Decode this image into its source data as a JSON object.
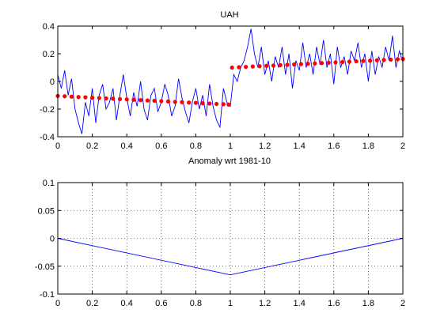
{
  "chart_data": [
    {
      "type": "line",
      "title": "UAH",
      "xlabel": "Anomaly wrt 1981-10",
      "ylabel": "",
      "xlim": [
        0,
        2
      ],
      "ylim": [
        -0.4,
        0.4
      ],
      "grid": false,
      "xticks": [
        "0",
        "0.2",
        "0.4",
        "0.6",
        "0.8",
        "1",
        "1.2",
        "1.4",
        "1.6",
        "1.8",
        "2"
      ],
      "yticks": [
        "-0.4",
        "-0.2",
        "0",
        "0.2",
        "0.4"
      ],
      "series": [
        {
          "color": "#0000ff",
          "style": "line",
          "x": [
            0.0,
            0.02,
            0.04,
            0.06,
            0.08,
            0.1,
            0.12,
            0.14,
            0.16,
            0.18,
            0.2,
            0.22,
            0.24,
            0.26,
            0.28,
            0.3,
            0.32,
            0.34,
            0.36,
            0.38,
            0.4,
            0.42,
            0.44,
            0.46,
            0.48,
            0.5,
            0.52,
            0.54,
            0.56,
            0.58,
            0.6,
            0.62,
            0.64,
            0.66,
            0.68,
            0.7,
            0.72,
            0.74,
            0.76,
            0.78,
            0.8,
            0.82,
            0.84,
            0.86,
            0.88,
            0.9,
            0.92,
            0.94,
            0.96,
            0.98,
            1.0,
            1.02,
            1.04,
            1.06,
            1.08,
            1.1,
            1.12,
            1.14,
            1.16,
            1.18,
            1.2,
            1.22,
            1.24,
            1.26,
            1.28,
            1.3,
            1.32,
            1.34,
            1.36,
            1.38,
            1.4,
            1.42,
            1.44,
            1.46,
            1.48,
            1.5,
            1.52,
            1.54,
            1.56,
            1.58,
            1.6,
            1.62,
            1.64,
            1.66,
            1.68,
            1.7,
            1.72,
            1.74,
            1.76,
            1.78,
            1.8,
            1.82,
            1.84,
            1.86,
            1.88,
            1.9,
            1.92,
            1.94,
            1.96,
            1.98,
            2.0
          ],
          "y": [
            0.05,
            -0.05,
            0.08,
            -0.1,
            0.02,
            -0.2,
            -0.3,
            -0.38,
            -0.15,
            -0.25,
            -0.05,
            -0.3,
            -0.1,
            -0.02,
            -0.2,
            -0.15,
            -0.05,
            -0.28,
            -0.1,
            0.05,
            -0.12,
            -0.25,
            -0.08,
            -0.18,
            0.0,
            -0.2,
            -0.28,
            -0.1,
            -0.05,
            -0.22,
            -0.15,
            -0.02,
            -0.1,
            -0.25,
            -0.18,
            0.02,
            -0.12,
            -0.22,
            -0.3,
            -0.15,
            -0.05,
            -0.2,
            -0.1,
            -0.25,
            -0.02,
            -0.18,
            -0.28,
            -0.33,
            -0.05,
            -0.15,
            -0.18,
            0.05,
            0.0,
            0.1,
            0.15,
            0.25,
            0.38,
            0.2,
            0.1,
            0.25,
            0.05,
            0.15,
            0.0,
            0.18,
            0.1,
            0.25,
            0.05,
            0.2,
            -0.05,
            0.15,
            0.08,
            0.28,
            0.1,
            0.2,
            0.05,
            0.25,
            0.12,
            0.3,
            0.1,
            0.2,
            -0.02,
            0.25,
            0.1,
            0.18,
            0.05,
            0.22,
            0.15,
            0.28,
            0.1,
            0.2,
            0.0,
            0.22,
            0.05,
            0.18,
            0.1,
            0.25,
            0.15,
            0.33,
            0.1,
            0.22,
            0.14
          ]
        },
        {
          "color": "#ff0000",
          "style": "markers",
          "x": [
            0.0,
            0.04,
            0.08,
            0.12,
            0.16,
            0.2,
            0.24,
            0.28,
            0.32,
            0.36,
            0.4,
            0.44,
            0.48,
            0.52,
            0.56,
            0.6,
            0.64,
            0.68,
            0.72,
            0.76,
            0.8,
            0.84,
            0.88,
            0.92,
            0.96,
            0.99,
            1.01,
            1.05,
            1.09,
            1.13,
            1.17,
            1.21,
            1.25,
            1.29,
            1.33,
            1.37,
            1.41,
            1.45,
            1.49,
            1.53,
            1.57,
            1.61,
            1.65,
            1.69,
            1.73,
            1.77,
            1.81,
            1.85,
            1.89,
            1.93,
            1.97,
            2.0
          ],
          "y": [
            -0.105,
            -0.107,
            -0.11,
            -0.113,
            -0.115,
            -0.118,
            -0.12,
            -0.123,
            -0.125,
            -0.128,
            -0.13,
            -0.133,
            -0.135,
            -0.138,
            -0.14,
            -0.143,
            -0.145,
            -0.148,
            -0.15,
            -0.153,
            -0.155,
            -0.158,
            -0.16,
            -0.163,
            -0.165,
            -0.167,
            0.1,
            0.103,
            0.105,
            0.108,
            0.11,
            0.113,
            0.115,
            0.118,
            0.12,
            0.123,
            0.125,
            0.128,
            0.13,
            0.133,
            0.135,
            0.138,
            0.14,
            0.143,
            0.145,
            0.148,
            0.15,
            0.153,
            0.155,
            0.158,
            0.16,
            0.162
          ]
        }
      ]
    },
    {
      "type": "line",
      "title": "",
      "xlabel": "",
      "ylabel": "",
      "xlim": [
        0,
        2
      ],
      "ylim": [
        -0.1,
        0.1
      ],
      "grid": true,
      "xticks": [
        "0",
        "0.2",
        "0.4",
        "0.6",
        "0.8",
        "1",
        "1.2",
        "1.4",
        "1.6",
        "1.8",
        "2"
      ],
      "yticks": [
        "-0.1",
        "-0.05",
        "0",
        "0.05",
        "0.1"
      ],
      "series": [
        {
          "color": "#0000ff",
          "style": "line",
          "x": [
            0,
            1,
            2
          ],
          "y": [
            0,
            -0.0655,
            0
          ]
        }
      ]
    }
  ]
}
